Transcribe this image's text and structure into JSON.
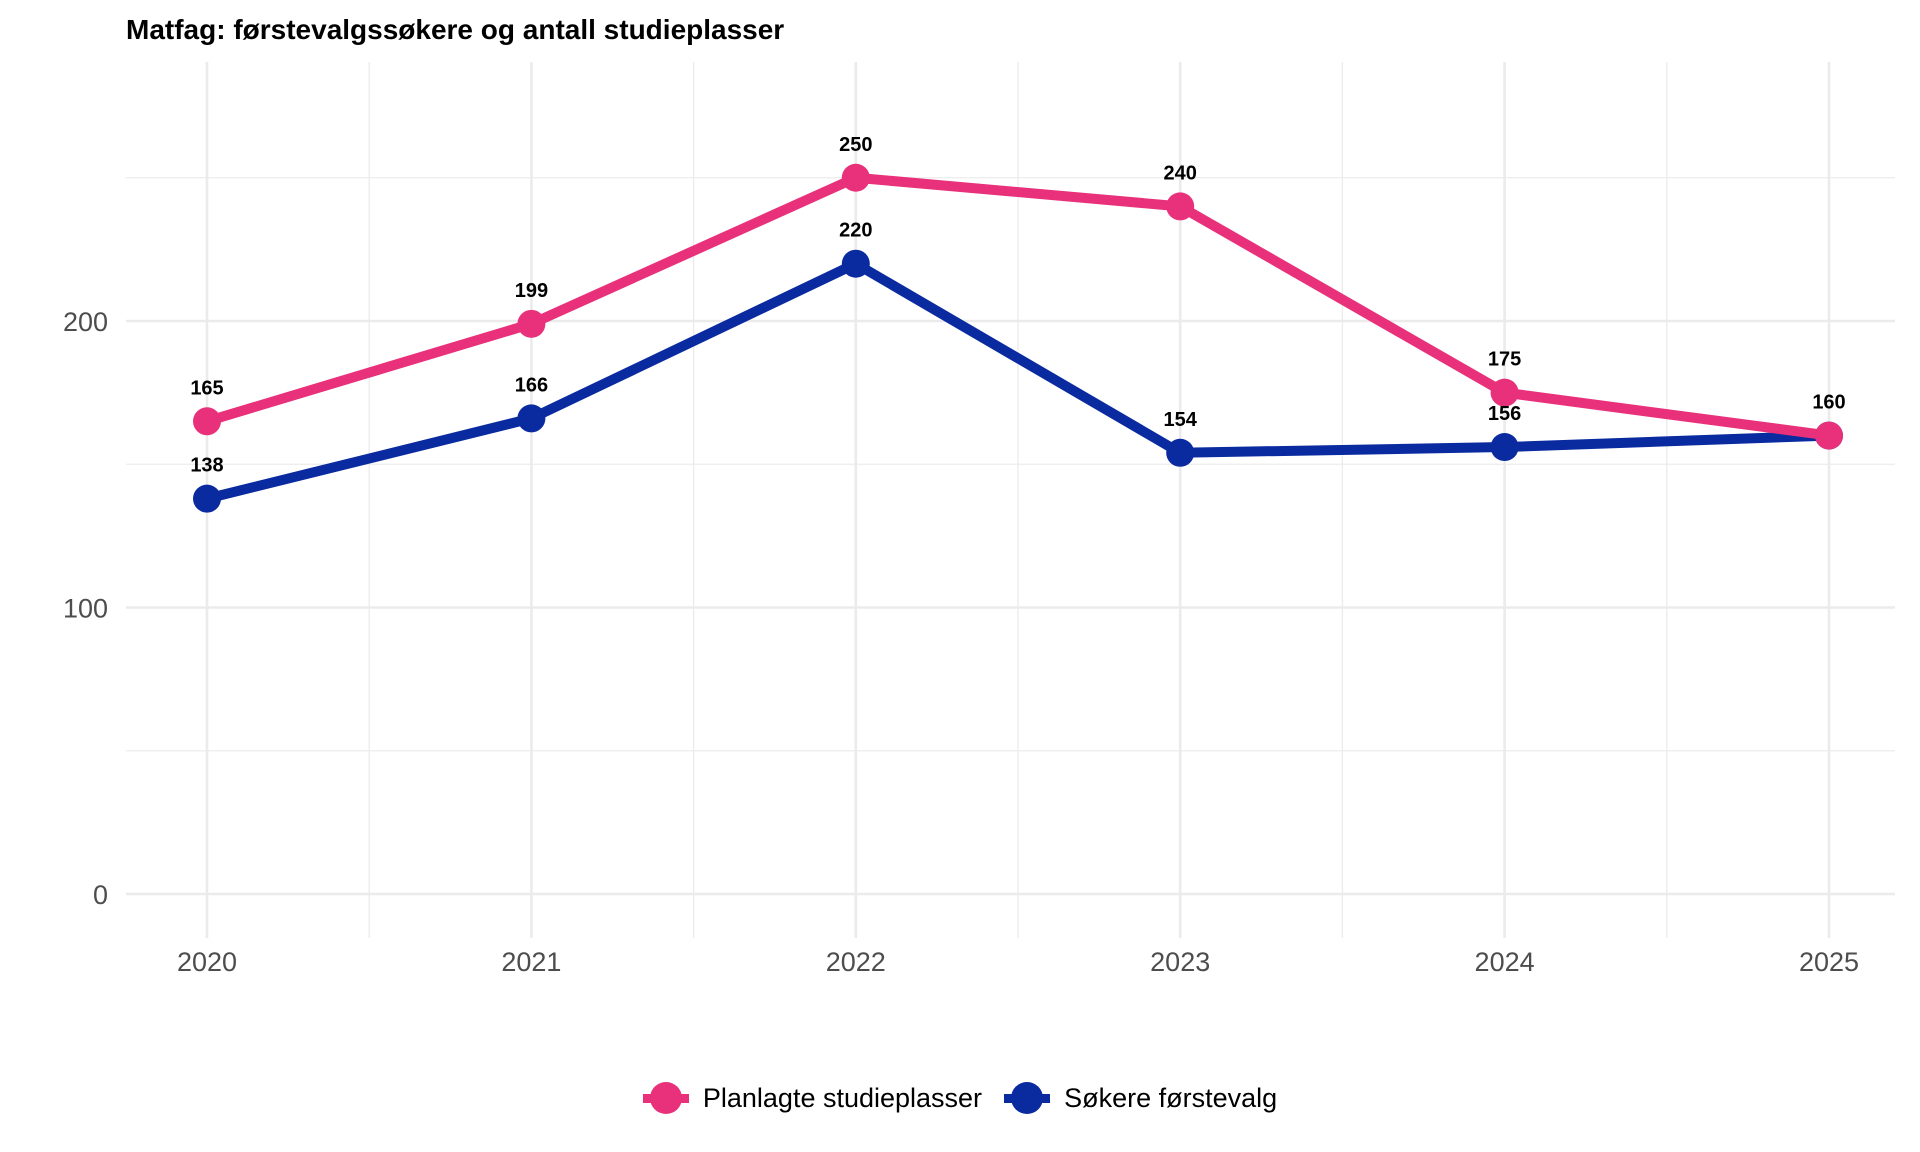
{
  "chart_data": {
    "type": "line",
    "title": "Matfag: førstevalgssøkere og antall studieplasser",
    "xlabel": "",
    "ylabel": "",
    "x": [
      "2020",
      "2021",
      "2022",
      "2023",
      "2024",
      "2025"
    ],
    "x_ticks": [
      "2020",
      "2021",
      "2022",
      "2023",
      "2024",
      "2025"
    ],
    "y_ticks": [
      "0",
      "100",
      "200"
    ],
    "y_tick_values": [
      0,
      100,
      200
    ],
    "ylim": [
      -13,
      270
    ],
    "grid": true,
    "legend_position": "bottom",
    "series": [
      {
        "name": "Planlagte studieplasser",
        "color": "#E8317A",
        "values": [
          165,
          199,
          250,
          240,
          175,
          160
        ],
        "labels": [
          "165",
          "199",
          "250",
          "240",
          "175",
          "160"
        ]
      },
      {
        "name": "Søkere førstevalg",
        "color": "#0A2AA0",
        "values": [
          138,
          166,
          220,
          154,
          156,
          160
        ],
        "labels": [
          "138",
          "166",
          "220",
          "154",
          "156",
          ""
        ]
      }
    ]
  }
}
